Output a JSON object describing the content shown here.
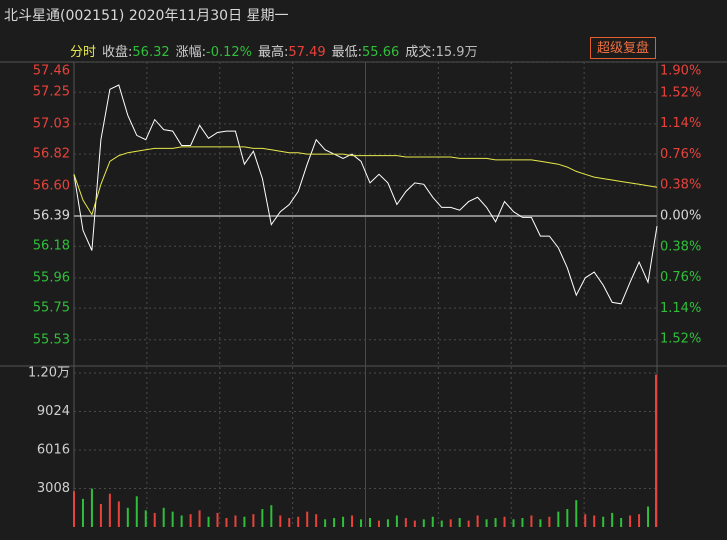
{
  "header": {
    "title": "北斗星通(002151) 2020年11月30日 星期一",
    "mode": "分时",
    "stats": [
      {
        "label": "收盘:",
        "value": "56.32",
        "color": "#2fbf3a"
      },
      {
        "label": "涨幅:",
        "value": "-0.12%",
        "color": "#2fbf3a"
      },
      {
        "label": "最高:",
        "value": "57.49",
        "color": "#e8423b"
      },
      {
        "label": "最低:",
        "value": "55.66",
        "color": "#2fbf3a"
      },
      {
        "label": "成交:",
        "value": "15.9万",
        "color": "#bbbbbb"
      }
    ],
    "button": "超级复盘"
  },
  "chart_data": [
    {
      "type": "line",
      "ylim": [
        55.32,
        57.46
      ],
      "yticks": [
        57.46,
        57.25,
        57.03,
        56.82,
        {
          "value": 56.6,
          "label": "56.60"
        },
        56.39,
        56.18,
        55.96,
        55.75,
        55.53
      ],
      "y2lim": [
        -1.9,
        1.9
      ],
      "y2ticks": [
        {
          "value": 1.9,
          "label": "1.90%"
        },
        {
          "value": 1.52,
          "label": "1.52%"
        },
        {
          "value": 1.14,
          "label": "1.14%"
        },
        {
          "value": 0.76,
          "label": "0.76%"
        },
        {
          "value": 0.38,
          "label": "0.38%"
        },
        {
          "value": 0,
          "label": "0.00%"
        },
        {
          "value": -0.38,
          "label": "0.38%"
        },
        {
          "value": -0.76,
          "label": "0.76%"
        },
        {
          "value": -1.14,
          "label": "1.14%"
        },
        {
          "value": -1.52,
          "label": "1.52%"
        }
      ],
      "grid": true,
      "series": [
        {
          "color": "#ffffff",
          "values": [
            56.68,
            56.29,
            56.15,
            56.92,
            57.27,
            57.3,
            57.09,
            56.95,
            56.92,
            57.06,
            56.99,
            56.98,
            56.88,
            56.88,
            57.02,
            56.93,
            56.97,
            56.98,
            56.98,
            56.75,
            56.84,
            56.65,
            56.33,
            56.42,
            56.47,
            56.56,
            56.75,
            56.92,
            56.85,
            56.82,
            56.79,
            56.82,
            56.77,
            56.62,
            56.68,
            56.62,
            56.47,
            56.56,
            56.62,
            56.61,
            56.52,
            56.45,
            56.45,
            56.43,
            56.49,
            56.52,
            56.45,
            56.35,
            56.49,
            56.42,
            56.38,
            56.38,
            56.25,
            56.25,
            56.17,
            56.03,
            55.84,
            55.96,
            56.0,
            55.91,
            55.79,
            55.78,
            55.93,
            56.07,
            55.93,
            56.32
          ]
        },
        {
          "color": "#e8e84a",
          "values": [
            56.68,
            56.5,
            56.4,
            56.61,
            56.77,
            56.81,
            56.83,
            56.84,
            56.85,
            56.86,
            56.86,
            56.86,
            56.87,
            56.87,
            56.87,
            56.87,
            56.87,
            56.87,
            56.87,
            56.87,
            56.86,
            56.86,
            56.85,
            56.84,
            56.83,
            56.83,
            56.82,
            56.82,
            56.82,
            56.82,
            56.82,
            56.81,
            56.81,
            56.81,
            56.81,
            56.81,
            56.81,
            56.8,
            56.8,
            56.8,
            56.8,
            56.8,
            56.8,
            56.79,
            56.79,
            56.79,
            56.79,
            56.78,
            56.78,
            56.78,
            56.78,
            56.78,
            56.77,
            56.76,
            56.75,
            56.73,
            56.7,
            56.68,
            56.66,
            56.65,
            56.64,
            56.63,
            56.62,
            56.61,
            56.6,
            56.59
          ]
        }
      ]
    },
    {
      "type": "bar",
      "ylim": [
        0,
        12032
      ],
      "yticks": [
        {
          "value": 12032,
          "label": "1.20万"
        },
        9024,
        6016,
        3008
      ],
      "grid": true,
      "values": [
        2800,
        2200,
        3000,
        1800,
        2600,
        2000,
        1500,
        2400,
        1300,
        1100,
        1500,
        1200,
        900,
        1000,
        1300,
        800,
        1100,
        700,
        900,
        800,
        1000,
        1400,
        1700,
        900,
        700,
        800,
        1200,
        1000,
        600,
        700,
        800,
        900,
        600,
        700,
        500,
        600,
        900,
        700,
        500,
        600,
        800,
        500,
        600,
        700,
        500,
        900,
        600,
        700,
        800,
        600,
        700,
        900,
        600,
        800,
        1200,
        1400,
        2100,
        1000,
        900,
        800,
        1100,
        700,
        900,
        1000,
        1600,
        11900
      ],
      "colors": [
        "#e8423b",
        "#2fbf3a",
        "#2fbf3a",
        "#e8423b",
        "#e8423b",
        "#e8423b",
        "#2fbf3a",
        "#2fbf3a",
        "#2fbf3a",
        "#e8423b",
        "#2fbf3a",
        "#2fbf3a",
        "#2fbf3a",
        "#e8423b",
        "#e8423b",
        "#2fbf3a",
        "#e8423b",
        "#e8423b",
        "#e8423b",
        "#2fbf3a",
        "#e8423b",
        "#2fbf3a",
        "#2fbf3a",
        "#e8423b",
        "#e8423b",
        "#e8423b",
        "#e8423b",
        "#e8423b",
        "#2fbf3a",
        "#2fbf3a",
        "#2fbf3a",
        "#e8423b",
        "#2fbf3a",
        "#2fbf3a",
        "#e8423b",
        "#2fbf3a",
        "#2fbf3a",
        "#e8423b",
        "#e8423b",
        "#2fbf3a",
        "#2fbf3a",
        "#2fbf3a",
        "#e8423b",
        "#2fbf3a",
        "#e8423b",
        "#e8423b",
        "#2fbf3a",
        "#2fbf3a",
        "#e8423b",
        "#2fbf3a",
        "#2fbf3a",
        "#e8423b",
        "#2fbf3a",
        "#e8423b",
        "#2fbf3a",
        "#2fbf3a",
        "#2fbf3a",
        "#e8423b",
        "#e8423b",
        "#2fbf3a",
        "#2fbf3a",
        "#2fbf3a",
        "#e8423b",
        "#e8423b",
        "#2fbf3a",
        "#e8423b"
      ]
    }
  ]
}
